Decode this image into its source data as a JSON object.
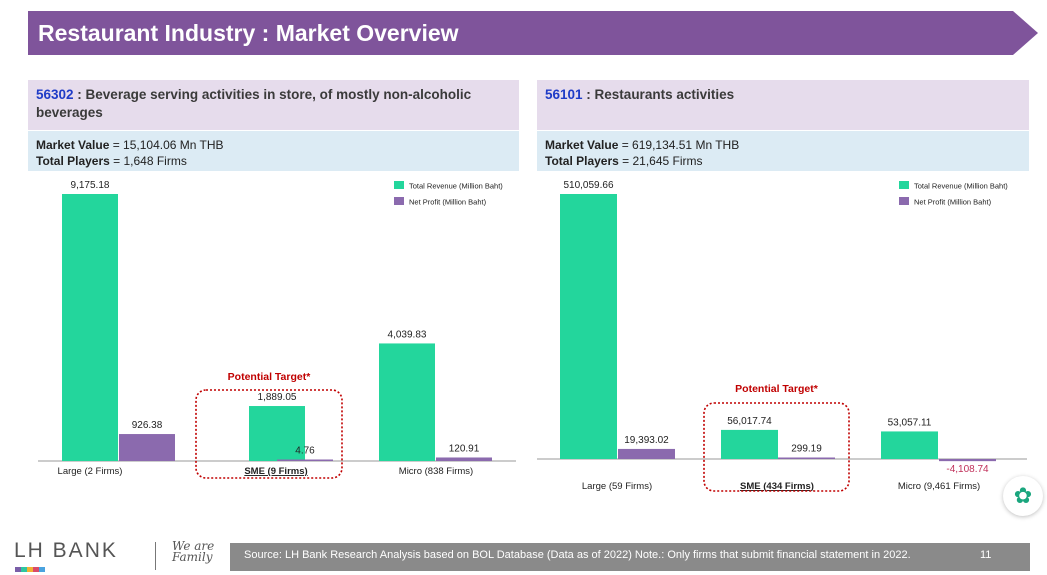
{
  "banner": {
    "title": "Restaurant Industry : Market Overview",
    "color": "#7f549b"
  },
  "left": {
    "code": "56302",
    "heading": " : Beverage serving activities in store, of mostly non-alcoholic beverages",
    "market_value_label": "Market Value",
    "market_value": " = 15,104.06 Mn THB",
    "total_players_label": "Total Players",
    "total_players": " = 1,648 Firms"
  },
  "right": {
    "code": "56101",
    "heading": " : Restaurants activities",
    "market_value_label": "Market Value",
    "market_value": " = 619,134.51 Mn THB",
    "total_players_label": "Total Players",
    "total_players": " = 21,645 Firms"
  },
  "chart_data": [
    {
      "type": "bar",
      "categories": [
        "Large (2 Firms)",
        "SME (9 Firms)",
        "Micro (838 Firms)"
      ],
      "series": [
        {
          "name": "Total Revenue (Million Baht)",
          "values": [
            9175.18,
            1889.05,
            4039.83
          ],
          "labels": [
            "9,175.18",
            "1,889.05",
            "4,039.83"
          ],
          "color": "#23d69c"
        },
        {
          "name": "Net Profit (Million Baht)",
          "values": [
            926.38,
            4.76,
            120.91
          ],
          "labels": [
            "926.38",
            "4.76",
            "120.91"
          ],
          "color": "#8b6aae"
        }
      ],
      "annotation": "Potential Target*",
      "highlight_index": 1,
      "ylim": [
        0,
        9175.18
      ]
    },
    {
      "type": "bar",
      "categories": [
        "Large (59 Firms)",
        "SME (434 Firms)",
        "Micro (9,461 Firms)"
      ],
      "series": [
        {
          "name": "Total Revenue (Million Baht)",
          "values": [
            510059.66,
            56017.74,
            53057.11
          ],
          "labels": [
            "510,059.66",
            "56,017.74",
            "53,057.11"
          ],
          "color": "#23d69c"
        },
        {
          "name": "Net Profit (Million Baht)",
          "values": [
            19393.02,
            299.19,
            -4108.74
          ],
          "labels": [
            "19,393.02",
            "299.19",
            "-4,108.74"
          ],
          "color": "#8b6aae"
        }
      ],
      "annotation": "Potential Target*",
      "highlight_index": 1,
      "ylim": [
        0,
        510059.66
      ]
    }
  ],
  "footer": {
    "logo": "LH BANK",
    "logo_script": "We are Family",
    "source": "Source: LH Bank Research Analysis based on BOL Database (Data as of 2022) Note.: Only firms that submit financial statement in 2022.",
    "page": "11"
  }
}
